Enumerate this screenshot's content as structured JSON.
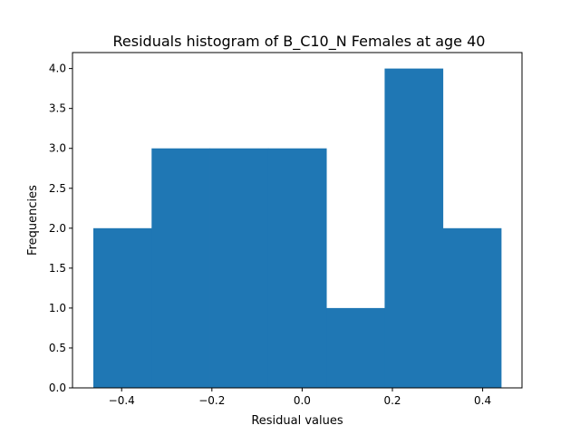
{
  "chart_data": {
    "type": "bar",
    "title": "Residuals histogram of B_C10_N Females at age 40",
    "xlabel": "Residual values",
    "ylabel": "Frequencies",
    "bins": [
      {
        "x0": -0.4627,
        "x1": -0.3336,
        "count": 2
      },
      {
        "x0": -0.3336,
        "x1": -0.2045,
        "count": 3
      },
      {
        "x0": -0.2045,
        "x1": -0.0754,
        "count": 3
      },
      {
        "x0": -0.0754,
        "x1": 0.0537,
        "count": 3
      },
      {
        "x0": 0.0537,
        "x1": 0.1828,
        "count": 1
      },
      {
        "x0": 0.1828,
        "x1": 0.3119,
        "count": 4
      },
      {
        "x0": 0.3119,
        "x1": 0.441,
        "count": 2
      }
    ],
    "xlim": [
      -0.5089,
      0.4872
    ],
    "ylim": [
      0,
      4.2
    ],
    "xticks": [
      -0.4,
      -0.2,
      0.0,
      0.2,
      0.4
    ],
    "xtick_labels": [
      "−0.4",
      "−0.2",
      "0.0",
      "0.2",
      "0.4"
    ],
    "yticks": [
      0,
      0.5,
      1.0,
      1.5,
      2.0,
      2.5,
      3.0,
      3.5,
      4.0
    ],
    "ytick_labels": [
      "0.0",
      "0.5",
      "1.0",
      "1.5",
      "2.0",
      "2.5",
      "3.0",
      "3.5",
      "4.0"
    ],
    "grid": false,
    "bar_color": "#1f77b4"
  }
}
